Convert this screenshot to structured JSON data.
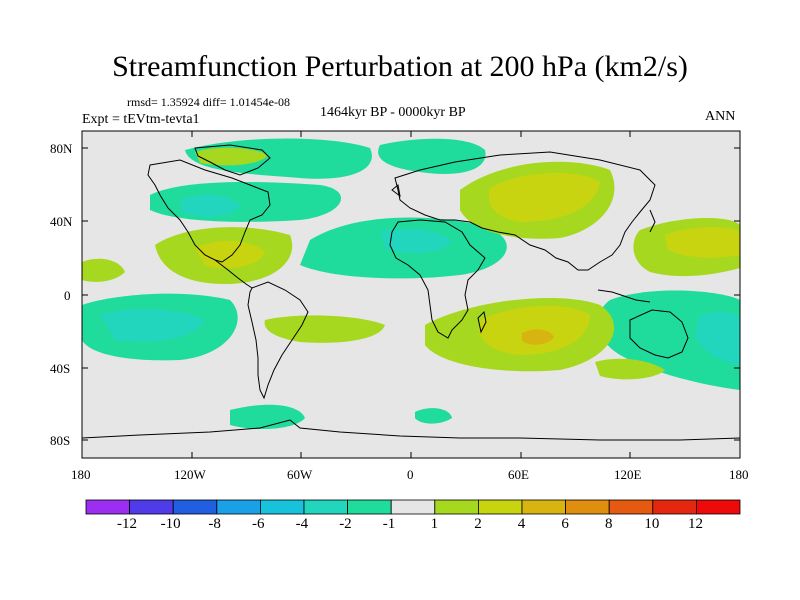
{
  "title": "Streamfunction Perturbation at 200 hPa (km2/s)",
  "stats": "rmsd= 1.35924 diff= 1.01454e-08",
  "experiment": "Expt = tEVtm-tevta1",
  "period": "1464kyr BP - 0000kyr BP",
  "season": "ANN",
  "lat_labels": [
    "80N",
    "40N",
    "0",
    "40S",
    "80S"
  ],
  "lon_labels": [
    "180",
    "120W",
    "60W",
    "0",
    "60E",
    "120E",
    "180"
  ],
  "colorbar": {
    "labels": [
      "-12",
      "-10",
      "-8",
      "-6",
      "-4",
      "-2",
      "-1",
      "1",
      "2",
      "4",
      "6",
      "8",
      "10",
      "12"
    ],
    "colors": [
      "#9b2ff0",
      "#4f3be8",
      "#1f5fe0",
      "#1aa0e6",
      "#18c2da",
      "#22d6be",
      "#20dc9c",
      "#e6e6e6",
      "#a6d820",
      "#c8d410",
      "#d8b410",
      "#e08e10",
      "#e45a10",
      "#e42810",
      "#ee0a0a"
    ]
  },
  "colors": {
    "background": "#e6e6e6",
    "neg1": "#20dc9c",
    "neg2": "#22d6be",
    "neg4": "#18c2da",
    "pos1": "#a6d820",
    "pos2": "#c8d410",
    "pos4": "#d8b410"
  }
}
